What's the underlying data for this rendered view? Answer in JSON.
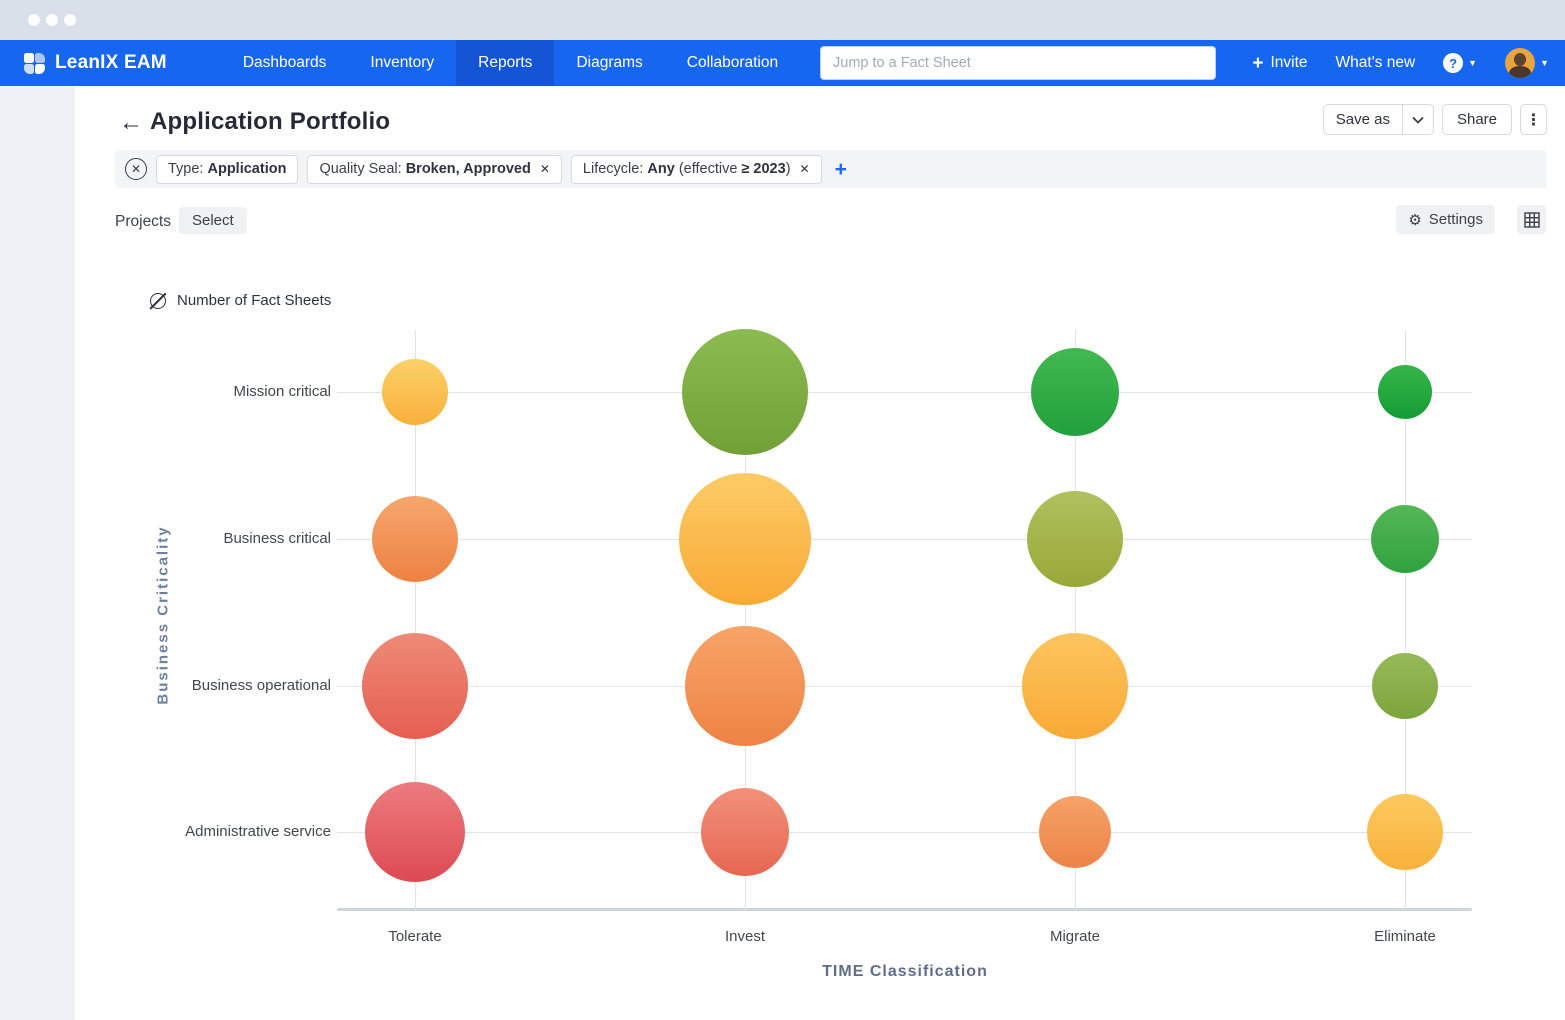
{
  "navbar": {
    "brand": "LeanIX EAM",
    "items": [
      {
        "label": "Dashboards",
        "active": false
      },
      {
        "label": "Inventory",
        "active": false
      },
      {
        "label": "Reports",
        "active": true
      },
      {
        "label": "Diagrams",
        "active": false
      },
      {
        "label": "Collaboration",
        "active": false
      }
    ],
    "search_placeholder": "Jump to a Fact Sheet",
    "invite_plus": "+",
    "invite_label": "Invite",
    "whats_new_label": "What's new",
    "help_icon": "?"
  },
  "header": {
    "back_icon": "←",
    "title": "Application Portfolio",
    "save_as_label": "Save as",
    "share_label": "Share",
    "kebab_icon": "⋮"
  },
  "filter_bar": {
    "clear_icon": "✕",
    "add_icon": "+",
    "chips": [
      {
        "segments": [
          {
            "t": "Type: ",
            "b": false
          },
          {
            "t": "Application",
            "b": true
          }
        ],
        "removable": false
      },
      {
        "segments": [
          {
            "t": "Quality Seal: ",
            "b": false
          },
          {
            "t": "Broken, Approved",
            "b": true
          }
        ],
        "removable": true
      },
      {
        "segments": [
          {
            "t": "Lifecycle: ",
            "b": false
          },
          {
            "t": "Any",
            "b": true
          },
          {
            "t": " (effective ",
            "b": false
          },
          {
            "t": "≥ 2023",
            "b": true
          },
          {
            "t": ")",
            "b": false
          }
        ],
        "removable": true
      }
    ]
  },
  "toolbar": {
    "projects_label": "Projects",
    "select_label": "Select",
    "settings_label": "Settings",
    "gear_icon": "⚙"
  },
  "chart_data": {
    "type": "scatter",
    "subtype": "bubble-matrix",
    "size_legend": "Number of Fact Sheets",
    "xlabel": "TIME Classification",
    "ylabel": "Business Criticality",
    "x_categories": [
      "Tolerate",
      "Invest",
      "Migrate",
      "Eliminate"
    ],
    "y_categories": [
      "Mission critical",
      "Business critical",
      "Business operational",
      "Administrative service"
    ],
    "grid": true,
    "bubbles": [
      {
        "x": "Tolerate",
        "y": "Mission critical",
        "radius_px": 33,
        "colors": [
          "#fcd169",
          "#f9b03b"
        ]
      },
      {
        "x": "Invest",
        "y": "Mission critical",
        "radius_px": 63,
        "colors": [
          "#8cbb52",
          "#71a036"
        ]
      },
      {
        "x": "Migrate",
        "y": "Mission critical",
        "radius_px": 44,
        "colors": [
          "#42b94f",
          "#21a03c"
        ]
      },
      {
        "x": "Eliminate",
        "y": "Mission critical",
        "radius_px": 27,
        "colors": [
          "#35b54a",
          "#169c35"
        ]
      },
      {
        "x": "Tolerate",
        "y": "Business critical",
        "radius_px": 43,
        "colors": [
          "#f5a76e",
          "#ee8142"
        ]
      },
      {
        "x": "Invest",
        "y": "Business critical",
        "radius_px": 66,
        "colors": [
          "#fccb66",
          "#f9aa35"
        ]
      },
      {
        "x": "Migrate",
        "y": "Business critical",
        "radius_px": 48,
        "colors": [
          "#b0c15e",
          "#98a838"
        ]
      },
      {
        "x": "Eliminate",
        "y": "Business critical",
        "radius_px": 34,
        "colors": [
          "#55b755",
          "#2fa23f"
        ]
      },
      {
        "x": "Tolerate",
        "y": "Business operational",
        "radius_px": 53,
        "colors": [
          "#ef8a78",
          "#e45f50"
        ]
      },
      {
        "x": "Invest",
        "y": "Business operational",
        "radius_px": 60,
        "colors": [
          "#f8a468",
          "#ee8344"
        ]
      },
      {
        "x": "Migrate",
        "y": "Business operational",
        "radius_px": 53,
        "colors": [
          "#fcc55f",
          "#f9a935"
        ]
      },
      {
        "x": "Eliminate",
        "y": "Business operational",
        "radius_px": 33,
        "colors": [
          "#97ba58",
          "#7ca43c"
        ]
      },
      {
        "x": "Tolerate",
        "y": "Administrative service",
        "radius_px": 50,
        "colors": [
          "#ec7c7f",
          "#dd4a53"
        ]
      },
      {
        "x": "Invest",
        "y": "Administrative service",
        "radius_px": 44,
        "colors": [
          "#f2907a",
          "#e66752"
        ]
      },
      {
        "x": "Migrate",
        "y": "Administrative service",
        "radius_px": 36,
        "colors": [
          "#f5a268",
          "#ed8347"
        ]
      },
      {
        "x": "Eliminate",
        "y": "Administrative service",
        "radius_px": 38,
        "colors": [
          "#fcc95f",
          "#f9b13b"
        ]
      }
    ]
  }
}
